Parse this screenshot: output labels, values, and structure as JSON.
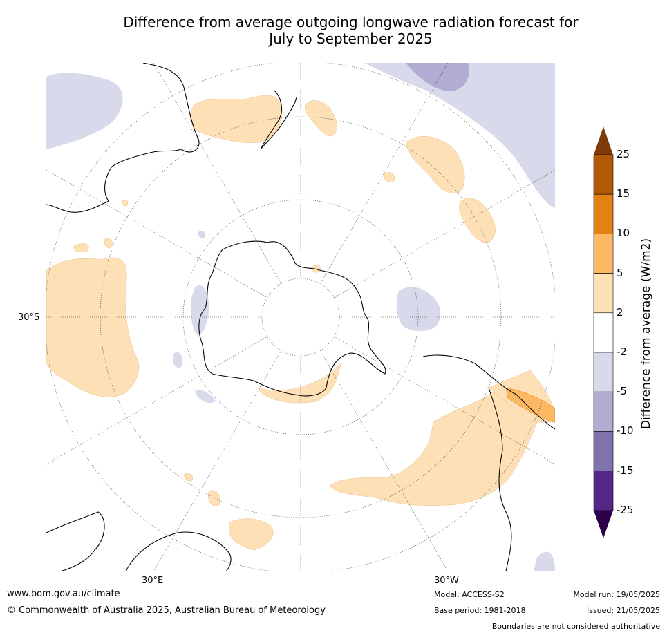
{
  "title_line1": "Difference from average outgoing longwave radiation forecast for",
  "title_line2": "July to September 2025",
  "labels": {
    "lat_30s": "30°S",
    "lon_30e": "30°E",
    "lon_30w": "30°W"
  },
  "colorbar": {
    "title": "Difference from average (W/m2)",
    "ticks": [
      "25",
      "15",
      "10",
      "5",
      "2",
      "-2",
      "-5",
      "-10",
      "-15",
      "-25"
    ],
    "bins": [
      {
        "range": "above 25",
        "color": "#7f3b08"
      },
      {
        "range": "15 to 25",
        "color": "#b35806"
      },
      {
        "range": "10 to 15",
        "color": "#e08214"
      },
      {
        "range": "5 to 10",
        "color": "#fdb863"
      },
      {
        "range": "2 to 5",
        "color": "#fee0b6"
      },
      {
        "range": "-2 to 2",
        "color": "#ffffff"
      },
      {
        "range": "-5 to -2",
        "color": "#d8daeb"
      },
      {
        "range": "-10 to -5",
        "color": "#b2abd2"
      },
      {
        "range": "-15 to -10",
        "color": "#8073ac"
      },
      {
        "range": "-25 to -15",
        "color": "#542788"
      },
      {
        "range": "below -25",
        "color": "#2d004b"
      }
    ]
  },
  "footer": {
    "website": "www.bom.gov.au/climate",
    "copyright": "© Commonwealth of Australia 2025, Australian Bureau of Meteorology",
    "model": "Model: ACCESS-S2",
    "base_period": "Base period: 1981-2018",
    "model_run": "Model run: 19/05/2025",
    "issued": "Issued: 21/05/2025",
    "disclaimer": "Boundaries are not considered authoritative"
  }
}
